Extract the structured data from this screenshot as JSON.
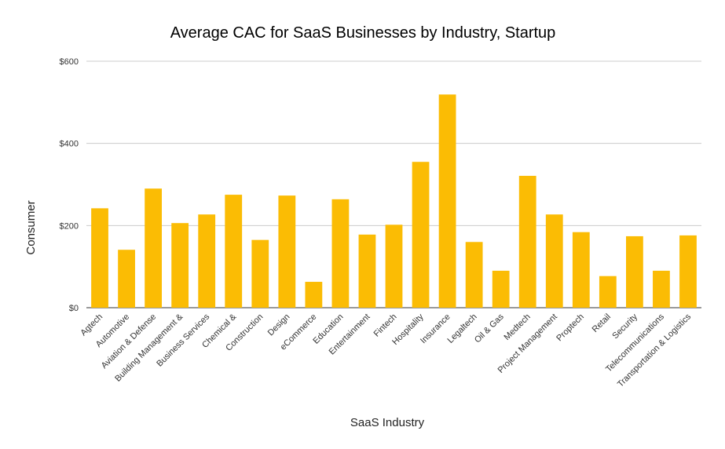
{
  "chart_data": {
    "type": "bar",
    "title": "Average CAC for SaaS Businesses by Industry, Startup",
    "xlabel": "SaaS Industry",
    "ylabel": "Consumer",
    "ylim": [
      0,
      600
    ],
    "yticks": [
      0,
      200,
      400,
      600
    ],
    "ytick_labels": [
      "$0",
      "$200",
      "$400",
      "$600"
    ],
    "grid": true,
    "bar_color": "#FBBC04",
    "categories": [
      "Agtech",
      "Automotive",
      "Aviation & Defense",
      "Building Management &",
      "Business Services",
      "Chemical &",
      "Construction",
      "Design",
      "eCommerce",
      "Education",
      "Entertainment",
      "Fintech",
      "Hospitality",
      "Insurance",
      "Legaltech",
      "Oil & Gas",
      "Medtech",
      "Project Management",
      "Proptech",
      "Retail",
      "Security",
      "Telecommunications",
      "Transportation & Logistics"
    ],
    "values": [
      242,
      141,
      290,
      206,
      227,
      275,
      165,
      273,
      63,
      264,
      178,
      202,
      355,
      519,
      160,
      90,
      321,
      227,
      184,
      77,
      174,
      90,
      176
    ]
  }
}
